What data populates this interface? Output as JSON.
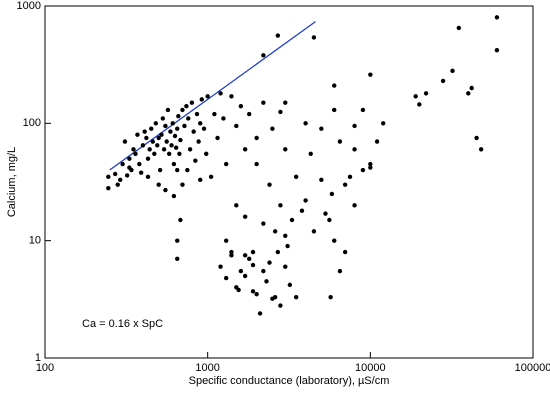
{
  "chart_data": {
    "type": "scatter",
    "xlabel": "Specific conductance (laboratory), µS/cm",
    "ylabel": "Calcium, mg/L",
    "annotation": "Ca = 0.16 x SpC",
    "xscale": "log",
    "yscale": "log",
    "xlim": [
      100,
      100000
    ],
    "ylim": [
      1,
      1000
    ],
    "xticks": [
      100,
      1000,
      10000,
      100000
    ],
    "yticks": [
      1,
      10,
      100,
      1000
    ],
    "color": "#000000",
    "x": [
      245,
      245,
      270,
      290,
      300,
      310,
      320,
      330,
      340,
      350,
      360,
      370,
      380,
      390,
      400,
      410,
      420,
      430,
      440,
      450,
      460,
      470,
      480,
      490,
      500,
      510,
      520,
      530,
      540,
      550,
      560,
      570,
      580,
      590,
      600,
      610,
      620,
      630,
      640,
      650,
      660,
      670,
      680,
      700,
      720,
      740,
      760,
      780,
      800,
      820,
      840,
      860,
      880,
      900,
      920,
      950,
      980,
      1000,
      1050,
      1100,
      1150,
      1200,
      1250,
      1300,
      1400,
      1500,
      1600,
      1700,
      1800,
      2000,
      2200,
      2500,
      2800,
      3000,
      500,
      550,
      620,
      700,
      750,
      430,
      330,
      280,
      650,
      900,
      1200,
      1300,
      1400,
      1500,
      1550,
      1600,
      1700,
      1800,
      1900,
      2000,
      2100,
      2200,
      2300,
      2400,
      2500,
      2700,
      2800,
      3000,
      3200,
      3500,
      1400,
      1700,
      1900,
      1300,
      1500,
      1700,
      2000,
      2200,
      2400,
      2600,
      2800,
      3000,
      3100,
      3300,
      3500,
      3800,
      4000,
      4300,
      4500,
      5000,
      5300,
      5600,
      5800,
      6000,
      6500,
      7000,
      7500,
      8000,
      9000,
      10000,
      10000,
      6500,
      5700,
      8000,
      4000,
      3000,
      5000,
      6000,
      7000,
      2200,
      2700,
      4500,
      6000,
      10000,
      8000,
      9000,
      11000,
      12000,
      19000,
      20000,
      22000,
      28000,
      32000,
      35000,
      40000,
      42000,
      45000,
      48000,
      60000,
      60000,
      680,
      650,
      650,
      1900,
      2600
    ],
    "values": [
      28,
      35,
      37,
      33,
      45,
      70,
      36,
      50,
      40,
      60,
      55,
      80,
      45,
      38,
      65,
      85,
      75,
      50,
      60,
      90,
      70,
      55,
      100,
      65,
      75,
      40,
      80,
      110,
      60,
      95,
      70,
      130,
      55,
      85,
      65,
      100,
      45,
      78,
      62,
      90,
      115,
      55,
      72,
      130,
      95,
      140,
      110,
      60,
      150,
      85,
      48,
      120,
      70,
      100,
      160,
      90,
      55,
      170,
      35,
      120,
      75,
      180,
      110,
      45,
      170,
      95,
      140,
      60,
      120,
      75,
      150,
      90,
      125,
      60,
      30,
      27,
      24,
      30,
      40,
      35,
      42,
      30,
      40,
      33,
      6,
      4.8,
      7.5,
      4,
      3.8,
      5.5,
      5,
      7,
      6.2,
      3.5,
      2.4,
      5.5,
      4.5,
      6.5,
      3.2,
      8,
      2.8,
      6,
      4.2,
      3.3,
      8,
      7.5,
      8,
      10,
      20,
      16,
      45,
      14,
      30,
      12,
      20,
      11,
      9,
      15,
      35,
      18,
      22,
      55,
      12,
      33,
      17,
      15,
      25,
      10,
      70,
      8,
      35,
      60,
      40,
      45,
      42,
      5.5,
      3.3,
      20,
      100,
      150,
      90,
      130,
      30,
      380,
      560,
      540,
      210,
      260,
      95,
      130,
      70,
      100,
      170,
      145,
      180,
      230,
      280,
      650,
      180,
      200,
      75,
      60,
      800,
      420,
      15,
      10,
      7,
      3.7,
      3.3
    ],
    "line": {
      "color": "#1f3fc8",
      "x": [
        250,
        4600
      ],
      "values": [
        40,
        736
      ]
    }
  }
}
